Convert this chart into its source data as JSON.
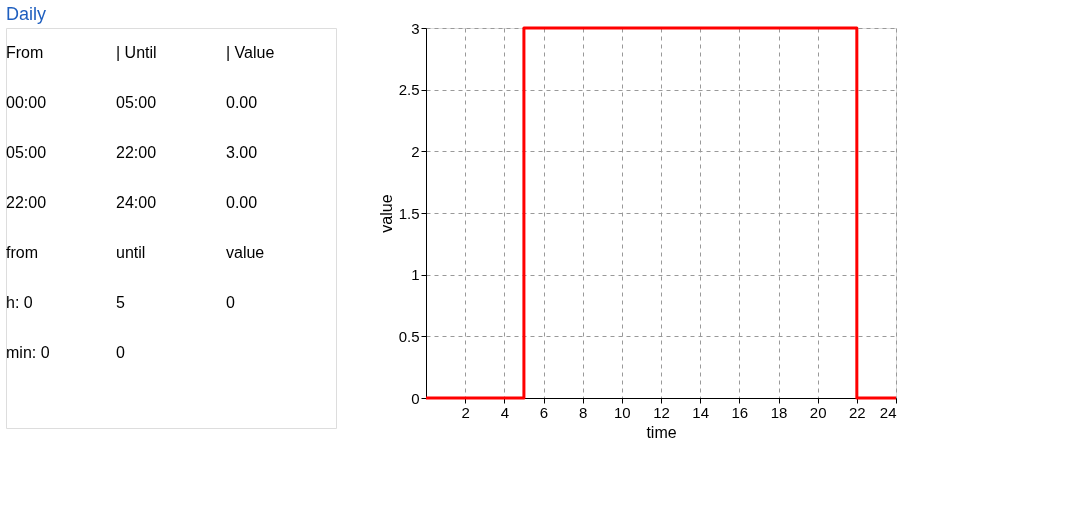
{
  "chart_data": [
    {
      "type": "other",
      "title": "Daily",
      "annotations": [
        "From",
        "| Until",
        "| Value",
        "00:00",
        "05:00",
        "0.00",
        "05:00",
        "22:00",
        "3.00",
        "22:00",
        "24:00",
        "0.00",
        "from",
        "until",
        "value",
        "h: 0",
        "5",
        "0",
        "min: 0",
        "0"
      ]
    },
    {
      "type": "step",
      "x": [
        0,
        5,
        22,
        24
      ],
      "values": [
        0,
        3,
        0,
        0
      ],
      "color": "#ff0000",
      "xlim": [
        0,
        24
      ],
      "xticks": [
        2,
        4,
        6,
        8,
        10,
        12,
        14,
        16,
        18,
        20,
        22,
        24
      ],
      "ylim": [
        0,
        3
      ],
      "yticks": [
        0,
        0.5,
        1,
        1.5,
        2,
        2.5,
        3
      ],
      "xlabel": "time",
      "ylabel": "value",
      "grid": true,
      "line_style": "solid"
    }
  ]
}
